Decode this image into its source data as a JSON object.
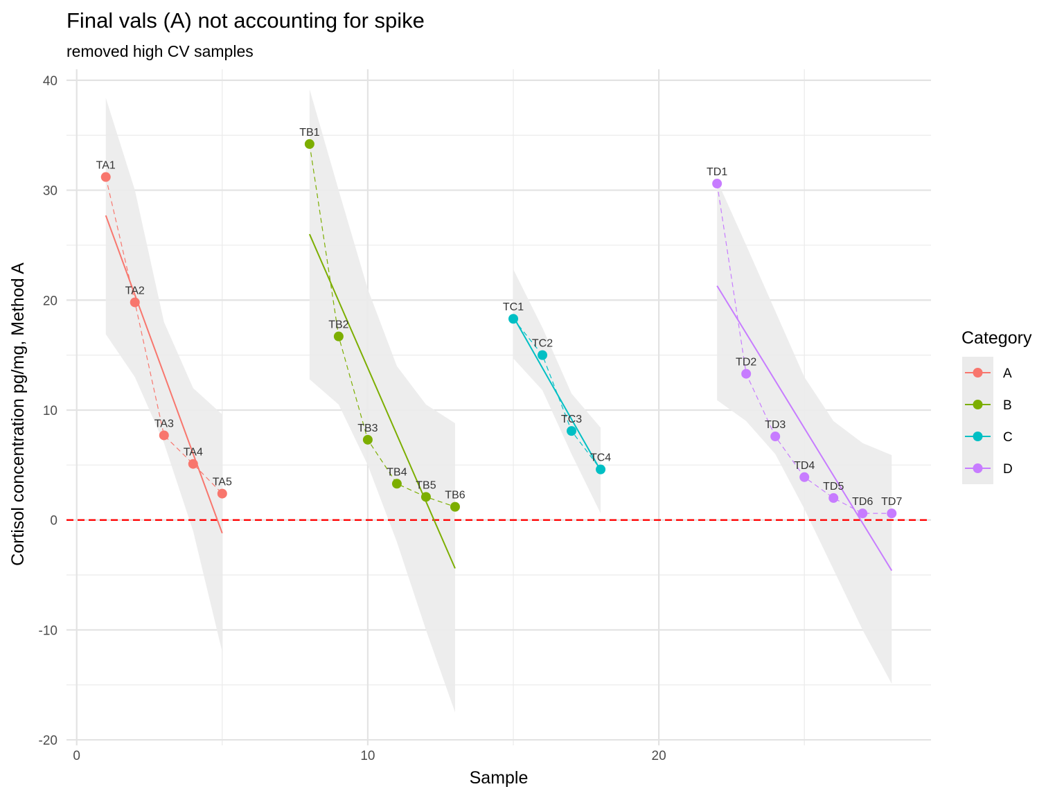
{
  "chart_data": {
    "type": "scatter",
    "title": "Final vals (A) not accounting for spike",
    "subtitle": "removed high CV samples",
    "xlabel": "Sample",
    "ylabel": "Cortisol concentration pg/mg, Method A",
    "xlim": [
      -0.35,
      29.35
    ],
    "ylim": [
      -20.5,
      41
    ],
    "x_ticks": [
      0,
      10,
      20
    ],
    "x_tick_labels": [
      "0",
      "10",
      "20"
    ],
    "y_ticks": [
      -20,
      -10,
      0,
      10,
      20,
      30,
      40
    ],
    "y_tick_labels": [
      "-20",
      "-10",
      "0",
      "10",
      "20",
      "30",
      "40"
    ],
    "grid": true,
    "reference_line": {
      "y": 0,
      "style": "dashed",
      "color": "#ff0000"
    },
    "legend": {
      "title": "Category",
      "position": "right"
    },
    "series": [
      {
        "name": "A",
        "color": "#F8766D",
        "points": [
          {
            "label": "TA1",
            "x": 1,
            "y": 31.2
          },
          {
            "label": "TA2",
            "x": 2,
            "y": 19.8
          },
          {
            "label": "TA3",
            "x": 3,
            "y": 7.7
          },
          {
            "label": "TA4",
            "x": 4,
            "y": 5.1
          },
          {
            "label": "TA5",
            "x": 5,
            "y": 2.4
          }
        ],
        "fit": {
          "x": [
            1,
            5
          ],
          "y": [
            27.7,
            -1.2
          ]
        },
        "ribbon": {
          "x": [
            1,
            2,
            3,
            4,
            5
          ],
          "lower": [
            16.9,
            13.0,
            7.0,
            -1.0,
            -12.0
          ],
          "upper": [
            38.4,
            30.0,
            18.0,
            12.0,
            9.6
          ]
        }
      },
      {
        "name": "B",
        "color": "#7CAE00",
        "points": [
          {
            "label": "TB1",
            "x": 8,
            "y": 34.2
          },
          {
            "label": "TB2",
            "x": 9,
            "y": 16.7
          },
          {
            "label": "TB3",
            "x": 10,
            "y": 7.3
          },
          {
            "label": "TB4",
            "x": 11,
            "y": 3.3
          },
          {
            "label": "TB5",
            "x": 12,
            "y": 2.1
          },
          {
            "label": "TB6",
            "x": 13,
            "y": 1.2
          }
        ],
        "fit": {
          "x": [
            8,
            13
          ],
          "y": [
            26.0,
            -4.4
          ]
        },
        "ribbon": {
          "x": [
            8,
            9,
            10,
            11,
            12,
            13
          ],
          "lower": [
            12.8,
            10.5,
            5.0,
            -2.0,
            -10.0,
            -17.5
          ],
          "upper": [
            39.2,
            30.0,
            21.0,
            14.0,
            10.5,
            8.8
          ]
        }
      },
      {
        "name": "C",
        "color": "#00BFC4",
        "points": [
          {
            "label": "TC1",
            "x": 15,
            "y": 18.3
          },
          {
            "label": "TC2",
            "x": 16,
            "y": 15.0
          },
          {
            "label": "TC3",
            "x": 17,
            "y": 8.1
          },
          {
            "label": "TC4",
            "x": 18,
            "y": 4.6
          }
        ],
        "fit": {
          "x": [
            15,
            18
          ],
          "y": [
            18.5,
            4.5
          ]
        },
        "ribbon": {
          "x": [
            15,
            16,
            17,
            18
          ],
          "lower": [
            14.7,
            11.8,
            6.0,
            0.6
          ],
          "upper": [
            22.8,
            17.5,
            11.5,
            8.4
          ]
        }
      },
      {
        "name": "D",
        "color": "#C77CFF",
        "points": [
          {
            "label": "TD1",
            "x": 22,
            "y": 30.6
          },
          {
            "label": "TD2",
            "x": 23,
            "y": 13.3
          },
          {
            "label": "TD3",
            "x": 24,
            "y": 7.6
          },
          {
            "label": "TD4",
            "x": 25,
            "y": 3.9
          },
          {
            "label": "TD5",
            "x": 26,
            "y": 2.0
          },
          {
            "label": "TD6",
            "x": 27,
            "y": 0.6
          },
          {
            "label": "TD7",
            "x": 28,
            "y": 0.6
          }
        ],
        "fit": {
          "x": [
            22,
            28
          ],
          "y": [
            21.3,
            -4.6
          ]
        },
        "ribbon": {
          "x": [
            22,
            23,
            24,
            25,
            26,
            27,
            28
          ],
          "lower": [
            10.9,
            9.0,
            6.0,
            1.0,
            -4.5,
            -10.0,
            -14.9
          ],
          "upper": [
            30.9,
            25.0,
            19.0,
            13.0,
            9.0,
            7.0,
            5.9
          ]
        }
      }
    ]
  }
}
